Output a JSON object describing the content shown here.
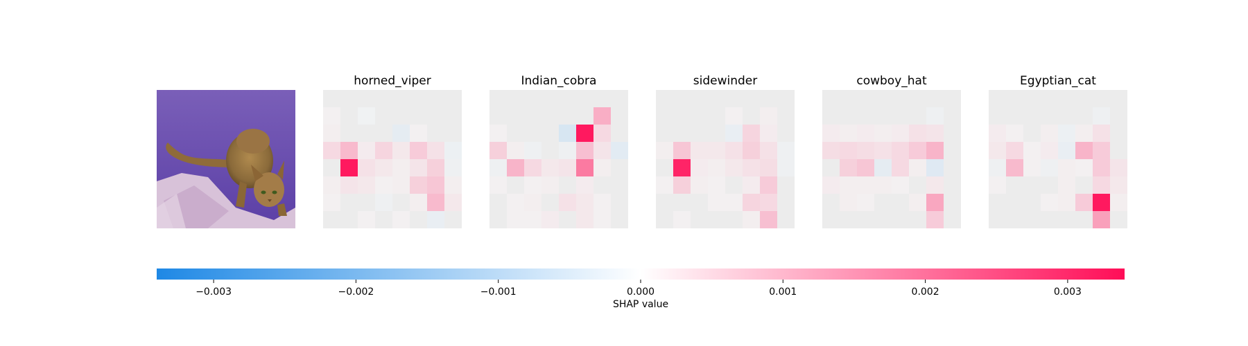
{
  "chart_data": {
    "type": "heatmap",
    "title": "",
    "input_image": "cat-photo",
    "panel_titles": [
      "horned_viper",
      "Indian_cobra",
      "sidewinder",
      "cowboy_hat",
      "Egyptian_cat"
    ],
    "grid_size": 8,
    "panels": [
      {
        "name": "horned_viper",
        "grid": [
          [
            0,
            0,
            0,
            0,
            0,
            0,
            0,
            0
          ],
          [
            0.0001,
            0,
            -0.0001,
            0,
            0,
            0,
            0,
            0
          ],
          [
            0.0002,
            0,
            0,
            0,
            -0.0005,
            0.0001,
            0,
            0
          ],
          [
            0.0008,
            0.0014,
            0.0003,
            0.0009,
            0.0004,
            0.0011,
            0.0006,
            -0.0003
          ],
          [
            0,
            0.0033,
            0.0006,
            0.0004,
            0.0002,
            0.0005,
            0.001,
            -0.0002
          ],
          [
            0.0002,
            0.0005,
            0.0004,
            0.0001,
            0.0002,
            0.001,
            0.0012,
            0.0002
          ],
          [
            0.0001,
            0,
            0,
            -0.0002,
            0,
            0.0002,
            0.0014,
            0.0004
          ],
          [
            0,
            0,
            0.0001,
            0,
            0.0001,
            0,
            -0.0004,
            0
          ]
        ]
      },
      {
        "name": "Indian_cobra",
        "grid": [
          [
            0,
            0,
            0,
            0,
            0,
            0,
            0,
            0
          ],
          [
            0,
            0,
            0,
            0,
            0,
            0,
            0.0016,
            0
          ],
          [
            0.0001,
            0,
            0,
            0,
            -0.0009,
            0.0033,
            0.0008,
            0
          ],
          [
            0.001,
            0.0002,
            -0.0002,
            0,
            -0.0002,
            0.0013,
            0.0005,
            -0.0006
          ],
          [
            -0.0002,
            0.0015,
            0.0008,
            0.0004,
            0.0005,
            0.0023,
            0.0002,
            0
          ],
          [
            0.0001,
            0,
            0.0001,
            0.0002,
            0,
            0.0003,
            0,
            0
          ],
          [
            0,
            0.0001,
            0.0002,
            0,
            0.0006,
            0.0004,
            0.0001,
            0
          ],
          [
            0,
            0.0001,
            0.0001,
            0.0003,
            0,
            0.0004,
            0.0001,
            0
          ]
        ]
      },
      {
        "name": "sidewinder",
        "grid": [
          [
            0,
            0,
            0,
            0,
            0,
            0,
            0,
            0
          ],
          [
            0,
            0,
            0,
            0,
            0.0001,
            0,
            0.0002,
            0
          ],
          [
            0,
            0,
            0,
            0,
            -0.0004,
            0.0009,
            0.0003,
            0
          ],
          [
            0.0002,
            0.0012,
            0.0004,
            0.0004,
            0.0006,
            0.001,
            0.0006,
            -0.0002
          ],
          [
            0,
            0.0032,
            0.0003,
            0.0002,
            0.0004,
            0.0006,
            0.0007,
            -0.0002
          ],
          [
            0.0001,
            0.001,
            0.0002,
            0.0001,
            0,
            0.0003,
            0.0011,
            0
          ],
          [
            0,
            0,
            0,
            0.0001,
            0.0001,
            0.0009,
            0.0008,
            0
          ],
          [
            0,
            0.0001,
            0,
            0,
            0,
            0.0002,
            0.0013,
            0
          ]
        ]
      },
      {
        "name": "cowboy_hat",
        "grid": [
          [
            0,
            0,
            0,
            0,
            0,
            0,
            0,
            0
          ],
          [
            0,
            0,
            0,
            0,
            0,
            0,
            -0.0002,
            0
          ],
          [
            0.0003,
            0.0002,
            0.0003,
            0.0002,
            0.0003,
            0.0006,
            0.0005,
            0
          ],
          [
            0.0007,
            0.0008,
            0.0007,
            0.0006,
            0.0008,
            0.0011,
            0.0015,
            0
          ],
          [
            0,
            0.001,
            0.0012,
            -0.0005,
            0.0008,
            0.0002,
            -0.0007,
            0
          ],
          [
            0.0003,
            0.0002,
            0.0002,
            0.0002,
            0.0001,
            0,
            0.0004,
            0
          ],
          [
            0,
            0.0002,
            0.0001,
            0,
            0,
            0.0002,
            0.0017,
            0
          ],
          [
            0,
            0,
            0,
            0,
            0,
            0,
            0.0011,
            0
          ]
        ]
      },
      {
        "name": "Egyptian_cat",
        "grid": [
          [
            0,
            0,
            0,
            0,
            0,
            0,
            0,
            0
          ],
          [
            0,
            0,
            0,
            0,
            0,
            0,
            -0.0002,
            0
          ],
          [
            0.0003,
            0.0001,
            0,
            0.0002,
            -0.0003,
            0.0002,
            0.0006,
            0
          ],
          [
            0.0004,
            0.0008,
            0.0001,
            0.0003,
            -0.0004,
            0.0015,
            0.0011,
            0
          ],
          [
            -0.0002,
            0.0014,
            0.0001,
            -0.0002,
            0.0002,
            0.0001,
            0.0011,
            0.0005
          ],
          [
            0.0001,
            0,
            0,
            0,
            0.0002,
            0,
            0.0008,
            0.0004
          ],
          [
            0,
            0,
            0,
            0.0001,
            0.0002,
            0.0011,
            0.0033,
            0.0002
          ],
          [
            0,
            0,
            0,
            0,
            0,
            0,
            0.0018,
            0
          ]
        ]
      }
    ],
    "colorbar": {
      "min": -0.0034,
      "max": 0.0034,
      "ticks": [
        -0.003,
        -0.002,
        -0.001,
        0.0,
        0.001,
        0.002,
        0.003
      ],
      "tick_labels": [
        "−0.003",
        "−0.002",
        "−0.001",
        "0.000",
        "0.001",
        "0.002",
        "0.003"
      ],
      "label": "SHAP value",
      "negative_color": "#1E88E5",
      "positive_color": "#FF0D57"
    }
  }
}
